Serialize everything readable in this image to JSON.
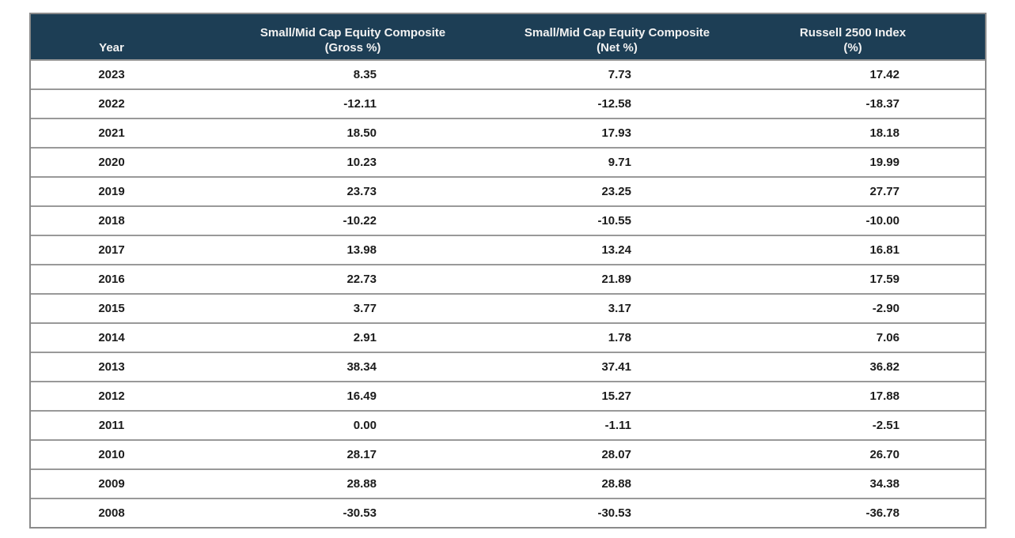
{
  "colors": {
    "header_bg": "#1d3e55",
    "header_text": "#f2f2f2",
    "border": "#8a8a8a",
    "row_line": "#999999",
    "cell_text": "#1c1c1c",
    "page_bg": "#ffffff"
  },
  "table": {
    "columns": [
      {
        "key": "year",
        "label_line1": "",
        "label_line2": "Year"
      },
      {
        "key": "gross",
        "label_line1": "Small/Mid Cap Equity Composite",
        "label_line2": "(Gross %)"
      },
      {
        "key": "net",
        "label_line1": "Small/Mid Cap Equity Composite",
        "label_line2": "(Net %)"
      },
      {
        "key": "index",
        "label_line1": "Russell 2500 Index",
        "label_line2": "(%)"
      }
    ],
    "rows": [
      {
        "year": "2023",
        "gross": "8.35",
        "net": "7.73",
        "index": "17.42"
      },
      {
        "year": "2022",
        "gross": "-12.11",
        "net": "-12.58",
        "index": "-18.37"
      },
      {
        "year": "2021",
        "gross": "18.50",
        "net": "17.93",
        "index": "18.18"
      },
      {
        "year": "2020",
        "gross": "10.23",
        "net": "9.71",
        "index": "19.99"
      },
      {
        "year": "2019",
        "gross": "23.73",
        "net": "23.25",
        "index": "27.77"
      },
      {
        "year": "2018",
        "gross": "-10.22",
        "net": "-10.55",
        "index": "-10.00"
      },
      {
        "year": "2017",
        "gross": "13.98",
        "net": "13.24",
        "index": "16.81"
      },
      {
        "year": "2016",
        "gross": "22.73",
        "net": "21.89",
        "index": "17.59"
      },
      {
        "year": "2015",
        "gross": "3.77",
        "net": "3.17",
        "index": "-2.90"
      },
      {
        "year": "2014",
        "gross": "2.91",
        "net": "1.78",
        "index": "7.06"
      },
      {
        "year": "2013",
        "gross": "38.34",
        "net": "37.41",
        "index": "36.82"
      },
      {
        "year": "2012",
        "gross": "16.49",
        "net": "15.27",
        "index": "17.88"
      },
      {
        "year": "2011",
        "gross": "0.00",
        "net": "-1.11",
        "index": "-2.51"
      },
      {
        "year": "2010",
        "gross": "28.17",
        "net": "28.07",
        "index": "26.70"
      },
      {
        "year": "2009",
        "gross": "28.88",
        "net": "28.88",
        "index": "34.38"
      },
      {
        "year": "2008",
        "gross": "-30.53",
        "net": "-30.53",
        "index": "-36.78"
      }
    ]
  },
  "chart_data": {
    "type": "table",
    "categories": [
      "2023",
      "2022",
      "2021",
      "2020",
      "2019",
      "2018",
      "2017",
      "2016",
      "2015",
      "2014",
      "2013",
      "2012",
      "2011",
      "2010",
      "2009",
      "2008"
    ],
    "series": [
      {
        "name": "Small/Mid Cap Equity Composite (Gross %)",
        "values": [
          8.35,
          -12.11,
          18.5,
          10.23,
          23.73,
          -10.22,
          13.98,
          22.73,
          3.77,
          2.91,
          38.34,
          16.49,
          0.0,
          28.17,
          28.88,
          -30.53
        ]
      },
      {
        "name": "Small/Mid Cap Equity Composite (Net %)",
        "values": [
          7.73,
          -12.58,
          17.93,
          9.71,
          23.25,
          -10.55,
          13.24,
          21.89,
          3.17,
          1.78,
          37.41,
          15.27,
          -1.11,
          28.07,
          28.88,
          -30.53
        ]
      },
      {
        "name": "Russell 2500 Index (%)",
        "values": [
          17.42,
          -18.37,
          18.18,
          19.99,
          27.77,
          -10.0,
          16.81,
          17.59,
          -2.9,
          7.06,
          36.82,
          17.88,
          -2.51,
          26.7,
          34.38,
          -36.78
        ]
      }
    ]
  }
}
